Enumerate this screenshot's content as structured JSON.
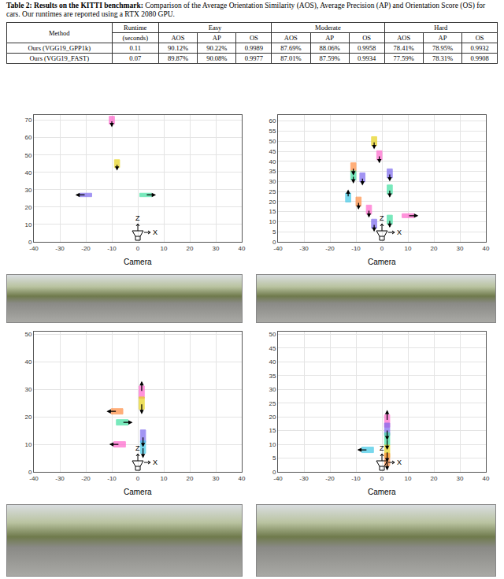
{
  "caption": {
    "label": "Table 2:",
    "title": "Results on the KITTI benchmark:",
    "text": "Comparison of the Average Orientation Similarity (AOS), Average Precision (AP) and Orientation Score (OS) for cars. Our runtimes are reported using a RTX 2080 GPU."
  },
  "table": {
    "header": [
      {
        "text": "Method",
        "rowspan": 2,
        "colspan": 1
      },
      {
        "text": "Runtime",
        "rowspan": 1,
        "colspan": 1
      },
      {
        "text": "Easy",
        "rowspan": 1,
        "colspan": 3
      },
      {
        "text": "Moderate",
        "rowspan": 1,
        "colspan": 3
      },
      {
        "text": "Hard",
        "rowspan": 1,
        "colspan": 3
      }
    ],
    "subheader": [
      "(seconds)",
      "AOS",
      "AP",
      "OS",
      "AOS",
      "AP",
      "OS",
      "AOS",
      "AP",
      "OS"
    ],
    "rows": [
      [
        "Ours (VGG19_GPP1k)",
        "0.11",
        "90.12%",
        "90.22%",
        "0.9989",
        "87.69%",
        "88.06%",
        "0.9958",
        "78.41%",
        "78.95%",
        "0.9932"
      ],
      [
        "Ours (VGG19_FAST)",
        "0.07",
        "89.87%",
        "90.08%",
        "0.9977",
        "87.01%",
        "87.59%",
        "0.9934",
        "77.59%",
        "78.31%",
        "0.9908"
      ]
    ]
  },
  "chart_data": [
    {
      "type": "scatter",
      "x_label": "X",
      "y_label": "Z",
      "camera_label": "Camera",
      "grid": true,
      "xlim": [
        -40,
        40
      ],
      "xticks": [
        -40,
        -30,
        -20,
        -10,
        0,
        10,
        20,
        30,
        40
      ],
      "ylim": [
        0,
        73
      ],
      "yticks": [
        0,
        10,
        20,
        30,
        40,
        50,
        60,
        70
      ],
      "objects": [
        {
          "x": -10,
          "z": 70,
          "heading": 270,
          "color": "#ff66cc"
        },
        {
          "x": -8,
          "z": 45,
          "heading": 270,
          "color": "#e6d21a"
        },
        {
          "x": -20,
          "z": 27,
          "heading": 180,
          "color": "#7b68ee"
        },
        {
          "x": 3,
          "z": 27,
          "heading": 0,
          "color": "#40e0a0"
        }
      ]
    },
    {
      "type": "scatter",
      "x_label": "X",
      "y_label": "Z",
      "camera_label": "Camera",
      "grid": true,
      "xlim": [
        -40,
        40
      ],
      "xticks": [
        -40,
        -30,
        -20,
        -10,
        0,
        10,
        20,
        30,
        40
      ],
      "ylim": [
        0,
        63
      ],
      "yticks": [
        0,
        5,
        10,
        15,
        20,
        25,
        30,
        35,
        40,
        45,
        50,
        55,
        60
      ],
      "objects": [
        {
          "x": -3,
          "z": 50,
          "heading": 270,
          "color": "#e6d21a"
        },
        {
          "x": -1,
          "z": 43,
          "heading": 270,
          "color": "#ff66cc"
        },
        {
          "x": 3,
          "z": 34,
          "heading": 270,
          "color": "#7b68ee"
        },
        {
          "x": 3,
          "z": 26,
          "heading": 270,
          "color": "#40e0a0"
        },
        {
          "x": -11,
          "z": 37,
          "heading": 270,
          "color": "#ff8c40"
        },
        {
          "x": -11,
          "z": 33,
          "heading": 270,
          "color": "#40e0a0"
        },
        {
          "x": -7.5,
          "z": 32,
          "heading": 270,
          "color": "#7b68ee"
        },
        {
          "x": -13,
          "z": 22,
          "heading": 90,
          "color": "#40c8e6"
        },
        {
          "x": -9,
          "z": 20,
          "heading": 270,
          "color": "#ff8c40"
        },
        {
          "x": -5,
          "z": 16,
          "heading": 270,
          "color": "#ff66cc"
        },
        {
          "x": -3,
          "z": 9,
          "heading": 270,
          "color": "#7b68ee"
        },
        {
          "x": 3,
          "z": 11,
          "heading": 270,
          "color": "#40e0a0"
        },
        {
          "x": 10,
          "z": 13,
          "heading": 0,
          "color": "#ff66cc"
        }
      ]
    },
    {
      "type": "scatter",
      "x_label": "X",
      "y_label": "Z",
      "camera_label": "Camera",
      "grid": true,
      "xlim": [
        -40,
        40
      ],
      "xticks": [
        -40,
        -30,
        -20,
        -10,
        0,
        10,
        20,
        30,
        40
      ],
      "ylim": [
        0,
        51
      ],
      "yticks": [
        0,
        10,
        20,
        30,
        40,
        50
      ],
      "objects": [
        {
          "x": 1.5,
          "z": 29,
          "heading": 90,
          "color": "#ff66cc"
        },
        {
          "x": 1.5,
          "z": 25,
          "heading": 270,
          "color": "#e6d21a"
        },
        {
          "x": -8,
          "z": 22,
          "heading": 180,
          "color": "#ff8c40"
        },
        {
          "x": -6,
          "z": 18,
          "heading": 0,
          "color": "#40e0a0"
        },
        {
          "x": 2,
          "z": 13,
          "heading": 270,
          "color": "#7b68ee"
        },
        {
          "x": -7,
          "z": 10,
          "heading": 180,
          "color": "#ff66cc"
        },
        {
          "x": 2,
          "z": 9,
          "heading": 270,
          "color": "#40c8e6"
        }
      ]
    },
    {
      "type": "scatter",
      "x_label": "X",
      "y_label": "Z",
      "camera_label": "Camera",
      "grid": true,
      "xlim": [
        -40,
        40
      ],
      "xticks": [
        -40,
        -30,
        -20,
        -10,
        0,
        10,
        20,
        30,
        40
      ],
      "ylim": [
        0,
        51
      ],
      "yticks": [
        0,
        5,
        10,
        15,
        20,
        25,
        30,
        35,
        40,
        45,
        50
      ],
      "objects": [
        {
          "x": 2,
          "z": 18.5,
          "heading": 90,
          "color": "#ff66cc"
        },
        {
          "x": 2,
          "z": 15.5,
          "heading": 270,
          "color": "#7b68ee"
        },
        {
          "x": 2,
          "z": 12,
          "heading": 270,
          "color": "#40e0a0"
        },
        {
          "x": 2,
          "z": 7.5,
          "heading": 270,
          "color": "#e6d21a"
        },
        {
          "x": 2,
          "z": 4.5,
          "heading": 270,
          "color": "#ff8c40"
        },
        {
          "x": -5.5,
          "z": 8,
          "heading": 180,
          "color": "#40c8e6"
        }
      ]
    }
  ]
}
